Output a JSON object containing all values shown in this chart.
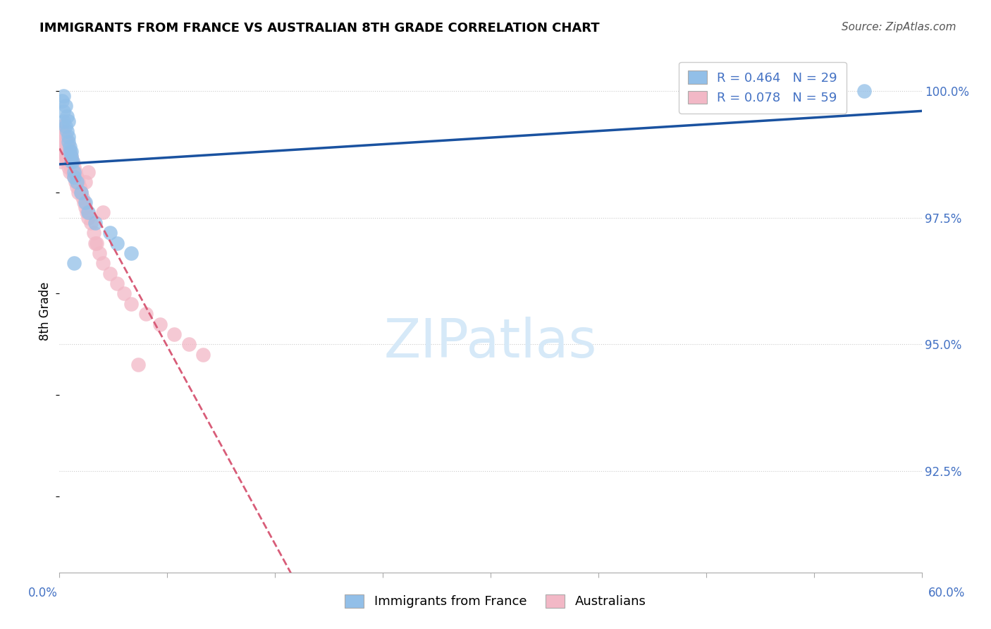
{
  "title": "IMMIGRANTS FROM FRANCE VS AUSTRALIAN 8TH GRADE CORRELATION CHART",
  "source": "Source: ZipAtlas.com",
  "ylabel": "8th Grade",
  "ytick_labels": [
    "100.0%",
    "97.5%",
    "95.0%",
    "92.5%"
  ],
  "ytick_vals": [
    1.0,
    0.975,
    0.95,
    0.925
  ],
  "xlim": [
    0.0,
    0.6
  ],
  "ylim": [
    0.905,
    1.008
  ],
  "xtick_left_label": "0.0%",
  "xtick_right_label": "60.0%",
  "legend_blue_r": "R = 0.464",
  "legend_blue_n": "N = 29",
  "legend_pink_r": "R = 0.078",
  "legend_pink_n": "N = 59",
  "legend_bottom_blue": "Immigrants from France",
  "legend_bottom_pink": "Australians",
  "blue_color": "#92BFE8",
  "pink_color": "#F2B8C6",
  "blue_line_color": "#1A52A0",
  "pink_line_color": "#D85C78",
  "grid_color": "#CCCCCC",
  "watermark_text": "ZIPatlas",
  "watermark_color": "#D6E9F8",
  "blue_x": [
    0.002,
    0.003,
    0.003,
    0.004,
    0.005,
    0.006,
    0.006,
    0.007,
    0.008,
    0.008,
    0.009,
    0.01,
    0.01,
    0.012,
    0.015,
    0.018,
    0.02,
    0.025,
    0.035,
    0.04,
    0.05,
    0.003,
    0.004,
    0.005,
    0.006,
    0.007,
    0.008,
    0.01,
    0.56
  ],
  "blue_y": [
    0.998,
    0.996,
    0.994,
    0.993,
    0.992,
    0.991,
    0.99,
    0.989,
    0.988,
    0.987,
    0.986,
    0.984,
    0.983,
    0.982,
    0.98,
    0.978,
    0.976,
    0.974,
    0.972,
    0.97,
    0.968,
    0.999,
    0.997,
    0.995,
    0.994,
    0.988,
    0.986,
    0.966,
    1.0
  ],
  "pink_x": [
    0.001,
    0.001,
    0.001,
    0.002,
    0.002,
    0.002,
    0.003,
    0.003,
    0.003,
    0.004,
    0.004,
    0.004,
    0.005,
    0.005,
    0.005,
    0.006,
    0.006,
    0.006,
    0.007,
    0.007,
    0.007,
    0.008,
    0.008,
    0.009,
    0.009,
    0.01,
    0.01,
    0.011,
    0.011,
    0.012,
    0.012,
    0.013,
    0.013,
    0.014,
    0.015,
    0.016,
    0.017,
    0.018,
    0.019,
    0.02,
    0.022,
    0.024,
    0.026,
    0.028,
    0.03,
    0.035,
    0.04,
    0.045,
    0.05,
    0.06,
    0.07,
    0.08,
    0.09,
    0.1,
    0.055,
    0.03,
    0.025,
    0.02,
    0.018
  ],
  "pink_y": [
    0.99,
    0.988,
    0.986,
    0.993,
    0.991,
    0.989,
    0.992,
    0.99,
    0.988,
    0.991,
    0.989,
    0.987,
    0.99,
    0.988,
    0.986,
    0.989,
    0.987,
    0.985,
    0.988,
    0.986,
    0.984,
    0.987,
    0.985,
    0.986,
    0.984,
    0.985,
    0.983,
    0.984,
    0.982,
    0.983,
    0.981,
    0.982,
    0.98,
    0.981,
    0.98,
    0.979,
    0.978,
    0.977,
    0.976,
    0.975,
    0.974,
    0.972,
    0.97,
    0.968,
    0.966,
    0.964,
    0.962,
    0.96,
    0.958,
    0.956,
    0.954,
    0.952,
    0.95,
    0.948,
    0.946,
    0.976,
    0.97,
    0.984,
    0.982
  ]
}
